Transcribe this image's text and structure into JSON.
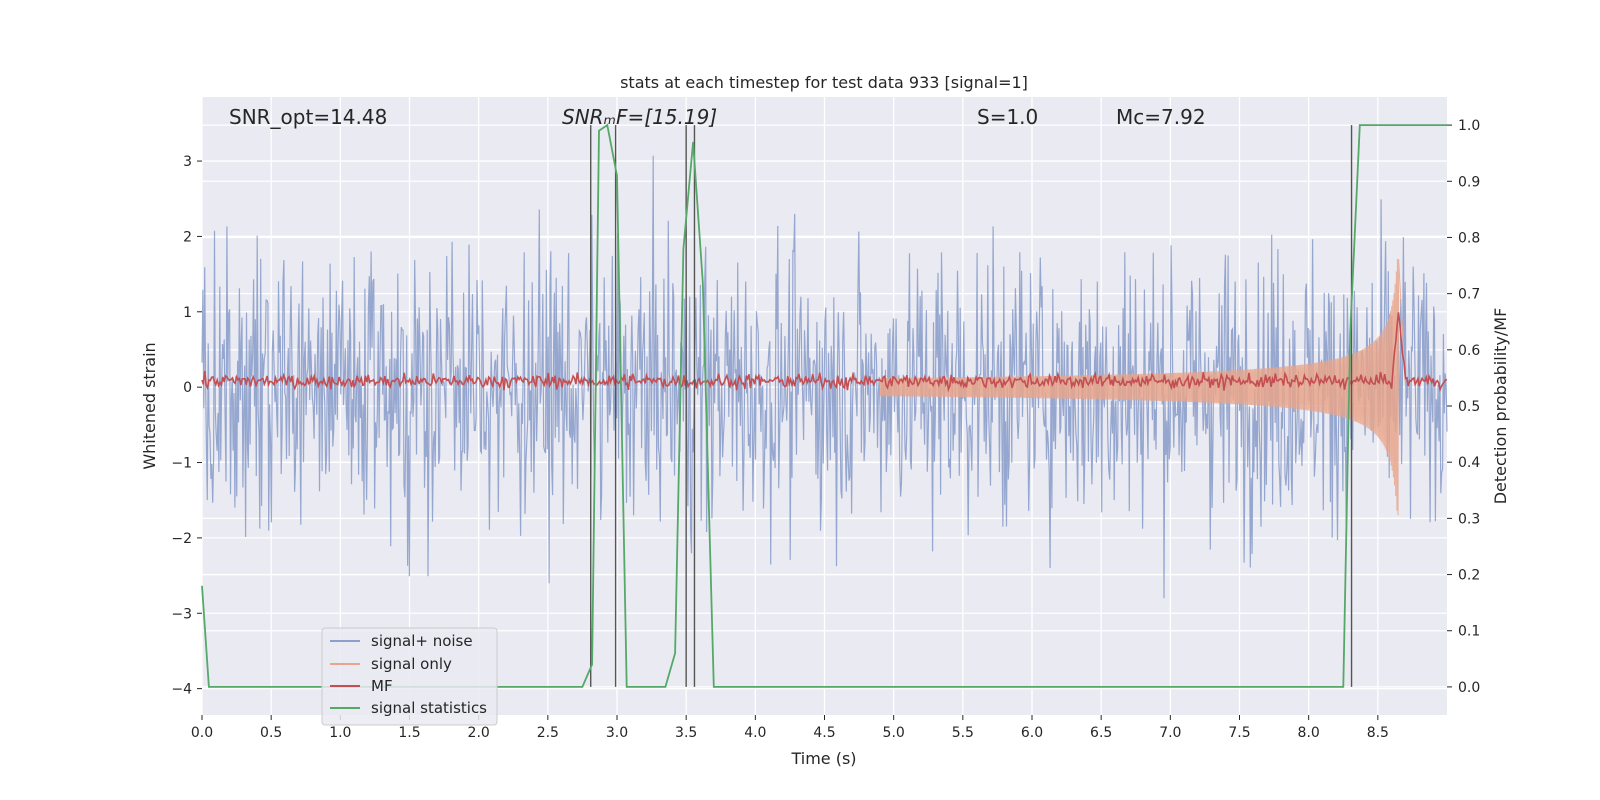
{
  "chart_data": {
    "type": "line",
    "title": "stats at each timestep for test data 933 [signal=1]",
    "xlabel": "Time (s)",
    "ylabel": "Whitened strain",
    "y2label": "Detection probability/MF",
    "xlim": [
      0.0,
      9.0
    ],
    "ylim": [
      -4.35,
      3.85
    ],
    "y2lim": [
      -0.05,
      1.05
    ],
    "xticks": [
      0.0,
      0.5,
      1.0,
      1.5,
      2.0,
      2.5,
      3.0,
      3.5,
      4.0,
      4.5,
      5.0,
      5.5,
      6.0,
      6.5,
      7.0,
      7.5,
      8.0,
      8.5
    ],
    "xtick_labels": [
      "0.0",
      "0.5",
      "1.0",
      "1.5",
      "2.0",
      "2.5",
      "3.0",
      "3.5",
      "4.0",
      "4.5",
      "5.0",
      "5.5",
      "6.0",
      "6.5",
      "7.0",
      "7.5",
      "8.0",
      "8.5"
    ],
    "yticks": [
      -4,
      -3,
      -2,
      -1,
      0,
      1,
      2,
      3
    ],
    "ytick_labels": [
      "−4",
      "−3",
      "−2",
      "−1",
      "0",
      "1",
      "2",
      "3"
    ],
    "y2ticks": [
      0.0,
      0.1,
      0.2,
      0.3,
      0.4,
      0.5,
      0.6,
      0.7,
      0.8,
      0.9,
      1.0
    ],
    "y2tick_labels": [
      "0.0",
      "0.1",
      "0.2",
      "0.3",
      "0.4",
      "0.5",
      "0.6",
      "0.7",
      "0.8",
      "0.9",
      "1.0"
    ],
    "grid": true,
    "legend_placement": "lower-left",
    "annotations": [
      {
        "key": "snr_opt",
        "text": "SNR_opt=14.48"
      },
      {
        "key": "snr_mf",
        "text": "SNRₘF=[15.19]"
      },
      {
        "key": "s",
        "text": "S=1.0"
      },
      {
        "key": "mc",
        "text": "Mᴄ=7.92"
      }
    ],
    "series": [
      {
        "name": "signal+ noise",
        "color": "#8da0cb",
        "kind": "noise",
        "amplitude_std": 0.9,
        "peak_range": [
          -4.0,
          3.5
        ]
      },
      {
        "name": "signal only",
        "color": "#e8a58b",
        "kind": "chirp",
        "t_start": 4.9,
        "t_merge": 8.65,
        "peak_amplitude": 1.7
      },
      {
        "name": "MF",
        "color": "#c44e52",
        "kind": "mf",
        "baseline": 0.08,
        "peak_time": 8.65,
        "peak_value": 1.0
      },
      {
        "name": "signal statistics",
        "color": "#55a868",
        "axis": "right",
        "x": [
          0.0,
          0.05,
          0.1,
          0.5,
          1.0,
          1.5,
          2.0,
          2.5,
          2.75,
          2.82,
          2.87,
          2.93,
          3.0,
          3.07,
          3.2,
          3.35,
          3.42,
          3.48,
          3.55,
          3.62,
          3.7,
          4.0,
          5.0,
          6.0,
          7.0,
          8.0,
          8.25,
          8.3,
          8.37,
          8.5,
          9.0
        ],
        "y": [
          0.18,
          0.0,
          0.0,
          0.0,
          0.0,
          0.0,
          0.0,
          0.0,
          0.0,
          0.04,
          0.99,
          1.0,
          0.91,
          0.0,
          0.0,
          0.0,
          0.06,
          0.78,
          0.97,
          0.72,
          0.0,
          0.0,
          0.0,
          0.0,
          0.0,
          0.0,
          0.0,
          0.63,
          1.0,
          1.0,
          1.0
        ]
      }
    ],
    "vlines": [
      2.81,
      2.99,
      3.5,
      3.56,
      8.31
    ]
  }
}
